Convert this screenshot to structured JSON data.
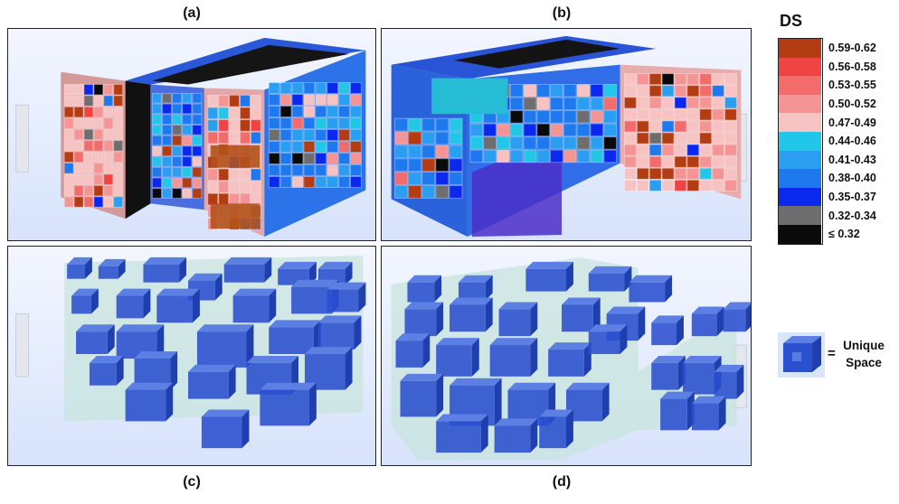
{
  "panels": {
    "a": {
      "label": "(a)"
    },
    "b": {
      "label": "(b)"
    },
    "c": {
      "label": "(c)"
    },
    "d": {
      "label": "(d)"
    }
  },
  "legend": {
    "title": "DS",
    "items": [
      {
        "label": "0.59-0.62",
        "color": "#b43c12"
      },
      {
        "label": "0.56-0.58",
        "color": "#f04444"
      },
      {
        "label": "0.53-0.55",
        "color": "#f26c6c"
      },
      {
        "label": "0.50-0.52",
        "color": "#f49494"
      },
      {
        "label": "0.47-0.49",
        "color": "#f6c2c2"
      },
      {
        "label": "0.44-0.46",
        "color": "#22c6e6"
      },
      {
        "label": "0.41-0.43",
        "color": "#2a9ef0"
      },
      {
        "label": "0.38-0.40",
        "color": "#1e78ee"
      },
      {
        "label": "0.35-0.37",
        "color": "#0a28ee"
      },
      {
        "label": "0.32-0.34",
        "color": "#6e6e6e"
      },
      {
        "label": "≤ 0.32",
        "color": "#0a0a0a"
      }
    ]
  },
  "unique_space": {
    "equals": "=",
    "line1": "Unique",
    "line2": "Space",
    "color": "#2a4fcf"
  }
}
